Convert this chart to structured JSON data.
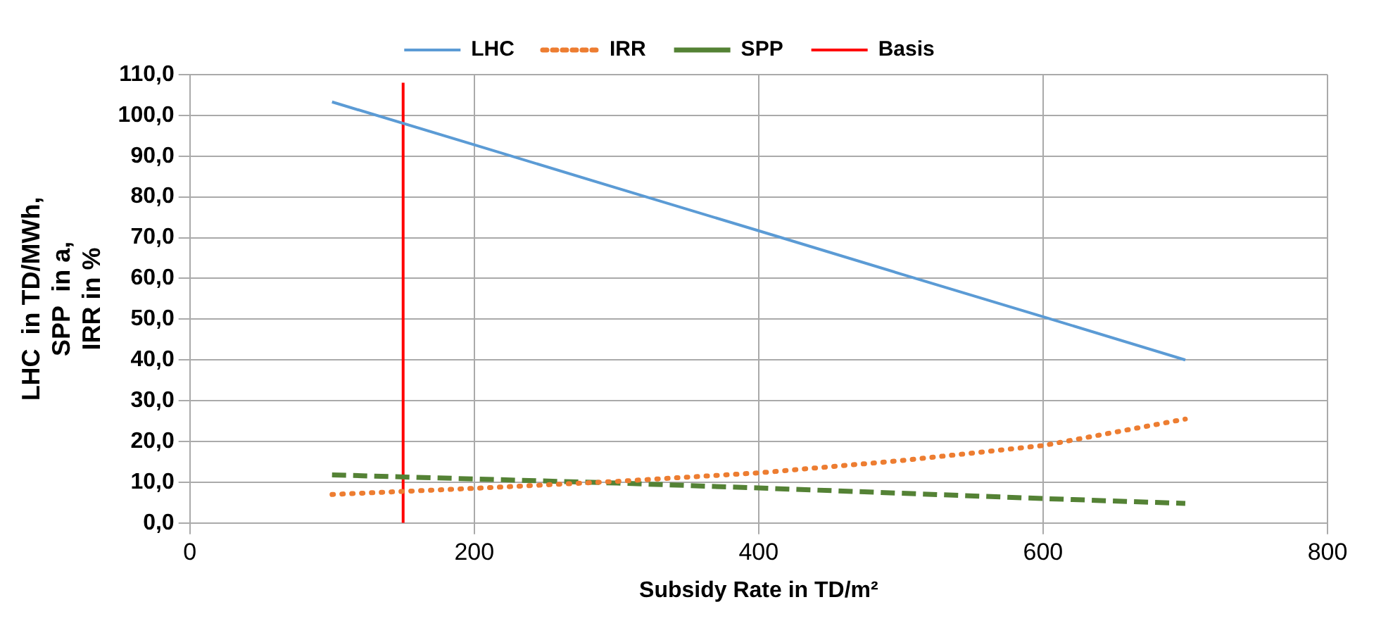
{
  "chart_data": {
    "type": "line",
    "xlabel": "Subsidy Rate in TD/m²",
    "ylabel": "LHC  in TD/MWh, SPP  in a,  IRR in %",
    "x": [
      100,
      200,
      300,
      400,
      500,
      600,
      700
    ],
    "series": [
      {
        "name": "LHC",
        "color": "#5b9bd5",
        "line_style": "solid",
        "values": [
          103.3,
          92.8,
          82.2,
          71.7,
          61.1,
          50.6,
          40.0
        ]
      },
      {
        "name": "IRR",
        "color": "#ed7d31",
        "line_style": "dotted",
        "values": [
          7.0,
          8.5,
          10.2,
          12.3,
          15.3,
          19.0,
          25.5
        ]
      },
      {
        "name": "SPP",
        "color": "#548235",
        "line_style": "dashed",
        "values": [
          11.8,
          10.8,
          9.8,
          8.6,
          7.3,
          6.0,
          4.8
        ]
      },
      {
        "name": "Basis",
        "color": "#ff0000",
        "line_style": "solid",
        "x": [
          150,
          150
        ],
        "values": [
          0,
          108
        ]
      }
    ],
    "xlim": [
      0,
      800
    ],
    "xticks": [
      0,
      200,
      400,
      600,
      800
    ],
    "ylim": [
      0,
      110
    ],
    "yticks": [
      {
        "value": 0,
        "label": "0,0"
      },
      {
        "value": 10,
        "label": "10,0"
      },
      {
        "value": 20,
        "label": "20,0"
      },
      {
        "value": 30,
        "label": "30,0"
      },
      {
        "value": 40,
        "label": "40,0"
      },
      {
        "value": 50,
        "label": "50,0"
      },
      {
        "value": 60,
        "label": "60,0"
      },
      {
        "value": 70,
        "label": "70,0"
      },
      {
        "value": 80,
        "label": "80,0"
      },
      {
        "value": 90,
        "label": "90,0"
      },
      {
        "value": 100,
        "label": "100,0"
      },
      {
        "value": 110,
        "label": "110,0"
      }
    ],
    "grid": true,
    "legend": "top",
    "marker": "none"
  }
}
